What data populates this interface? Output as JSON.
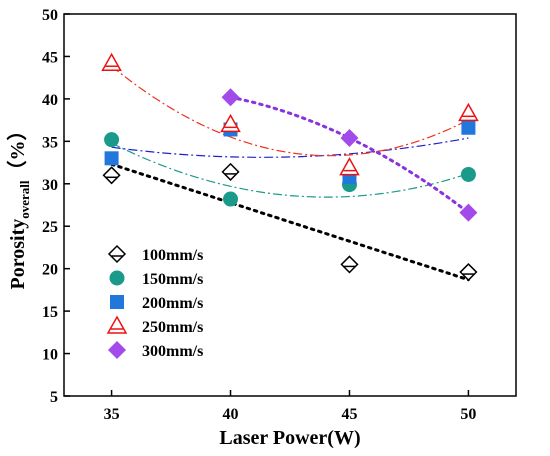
{
  "chart_data": {
    "type": "scatter",
    "title": "",
    "xlabel": "Laser Power(W)",
    "ylabel": "Porosity",
    "ylabel_subscript": "overall",
    "ylabel_unit": "（%）",
    "xlim": [
      33,
      52
    ],
    "ylim": [
      5,
      50
    ],
    "x_ticks": [
      35,
      40,
      45,
      50
    ],
    "y_ticks": [
      5,
      10,
      15,
      20,
      25,
      30,
      35,
      40,
      45,
      50
    ],
    "grid": false,
    "legend_position": "bottom-left",
    "series": [
      {
        "name": "100mm/s",
        "marker": "diamond-open",
        "color": "#000000",
        "x": [
          35,
          40,
          45,
          50
        ],
        "y": [
          31.0,
          31.4,
          20.5,
          19.6
        ],
        "fit": {
          "style": "dotted",
          "color": "#000000",
          "from": 35,
          "to": 50,
          "x": [
            35,
            50
          ],
          "y": [
            32.3,
            18.7
          ]
        }
      },
      {
        "name": "150mm/s",
        "marker": "circle",
        "color": "#1a9a8a",
        "x": [
          35,
          40,
          45,
          50
        ],
        "y": [
          35.2,
          28.2,
          29.9,
          31.1
        ],
        "fit": {
          "style": "dashdot",
          "color": "#1a9a8a",
          "from": 35,
          "to": 50,
          "x": [
            35,
            40,
            45,
            50
          ],
          "y": [
            34.8,
            29.7,
            28.5,
            31.2
          ]
        }
      },
      {
        "name": "200mm/s",
        "marker": "square",
        "color": "#2277dd",
        "x": [
          35,
          40,
          45,
          50
        ],
        "y": [
          33.0,
          36.4,
          30.8,
          36.6
        ],
        "fit": {
          "style": "dashdot",
          "color": "#2222cc",
          "from": 35,
          "to": 50,
          "x": [
            35,
            40,
            45,
            50
          ],
          "y": [
            34.3,
            33.2,
            33.5,
            35.4
          ]
        }
      },
      {
        "name": "250mm/s",
        "marker": "triangle-open",
        "color": "#ee1111",
        "x": [
          35,
          40,
          45,
          50
        ],
        "y": [
          44.2,
          37.0,
          31.9,
          38.3
        ],
        "fit": {
          "style": "dashdot",
          "color": "#ee3322",
          "from": 35,
          "to": 50,
          "x": [
            35,
            40,
            45,
            50
          ],
          "y": [
            43.8,
            35.7,
            33.2,
            37.6
          ]
        }
      },
      {
        "name": "300mm/s",
        "marker": "diamond",
        "color": "#a24bea",
        "x": [
          40,
          45,
          50
        ],
        "y": [
          40.2,
          35.4,
          26.6
        ],
        "fit": {
          "style": "dotted",
          "color": "#8833dd",
          "from": 40,
          "to": 50,
          "x": [
            40,
            45,
            50
          ],
          "y": [
            40.2,
            35.4,
            26.6
          ]
        }
      }
    ]
  }
}
